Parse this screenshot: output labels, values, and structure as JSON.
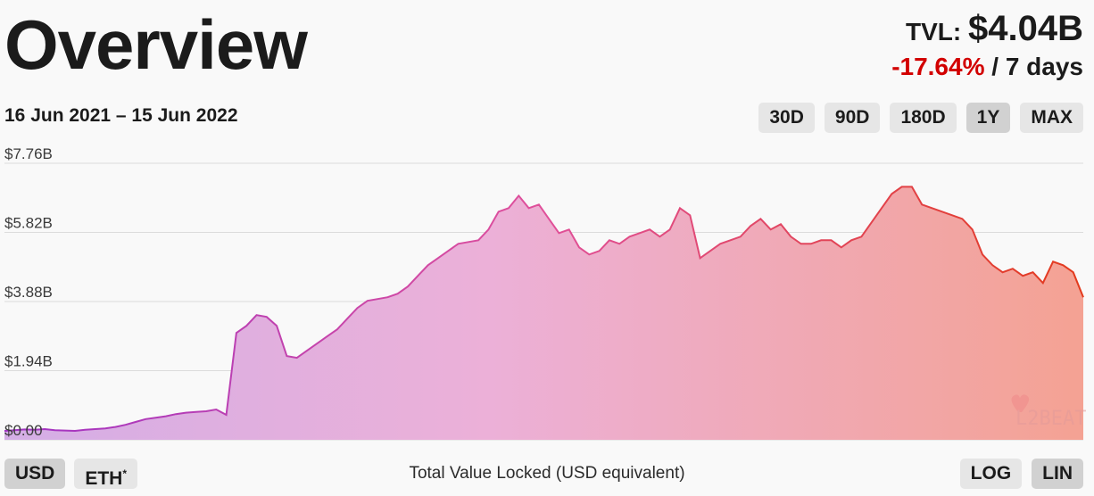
{
  "header": {
    "title": "Overview",
    "tvl_label": "TVL:",
    "tvl_value": "$4.04B",
    "change": "-17.64%",
    "change_period": "/ 7 days",
    "change_color": "#d20000"
  },
  "range_label": "16 Jun 2021 – 15 Jun 2022",
  "range_buttons": [
    {
      "label": "30D",
      "active": false
    },
    {
      "label": "90D",
      "active": false
    },
    {
      "label": "180D",
      "active": false
    },
    {
      "label": "1Y",
      "active": true
    },
    {
      "label": "MAX",
      "active": false
    }
  ],
  "currency_buttons": [
    {
      "label": "USD",
      "active": true
    },
    {
      "label": "ETH",
      "sup": "*",
      "active": false
    }
  ],
  "scale_buttons": [
    {
      "label": "LOG",
      "active": false
    },
    {
      "label": "LIN",
      "active": true
    }
  ],
  "caption": "Total Value Locked (USD equivalent)",
  "watermark": "L2BEAT",
  "chart_data": {
    "type": "area",
    "ytick_labels": [
      "$7.76B",
      "$5.82B",
      "$3.88B",
      "$1.94B",
      "$0.00"
    ],
    "ytick_values": [
      7.76,
      5.82,
      3.88,
      1.94,
      0
    ],
    "ylim": [
      0,
      7.76
    ],
    "grid": true,
    "y_unit": "billion USD",
    "x_start": "2021-06-16",
    "x_end": "2022-06-15",
    "colors": {
      "start": "#a033c4",
      "mid": "#e0509a",
      "end": "#e33a1c"
    },
    "values": [
      0.25,
      0.27,
      0.29,
      0.28,
      0.3,
      0.27,
      0.26,
      0.25,
      0.28,
      0.3,
      0.32,
      0.36,
      0.42,
      0.5,
      0.58,
      0.62,
      0.66,
      0.72,
      0.76,
      0.78,
      0.8,
      0.85,
      0.7,
      3.0,
      3.2,
      3.5,
      3.45,
      3.2,
      2.35,
      2.3,
      2.5,
      2.7,
      2.9,
      3.1,
      3.4,
      3.7,
      3.9,
      3.95,
      4.0,
      4.1,
      4.3,
      4.6,
      4.9,
      5.1,
      5.3,
      5.5,
      5.55,
      5.6,
      5.9,
      6.4,
      6.5,
      6.85,
      6.5,
      6.6,
      6.2,
      5.8,
      5.9,
      5.4,
      5.2,
      5.3,
      5.6,
      5.5,
      5.7,
      5.8,
      5.9,
      5.7,
      5.9,
      6.5,
      6.3,
      5.1,
      5.3,
      5.5,
      5.6,
      5.7,
      6.0,
      6.2,
      5.9,
      6.05,
      5.7,
      5.5,
      5.5,
      5.6,
      5.6,
      5.4,
      5.6,
      5.7,
      6.1,
      6.5,
      6.9,
      7.1,
      7.1,
      6.6,
      6.5,
      6.4,
      6.3,
      6.2,
      5.9,
      5.2,
      4.9,
      4.7,
      4.8,
      4.6,
      4.7,
      4.4,
      5.0,
      4.9,
      4.7,
      4.0
    ]
  }
}
